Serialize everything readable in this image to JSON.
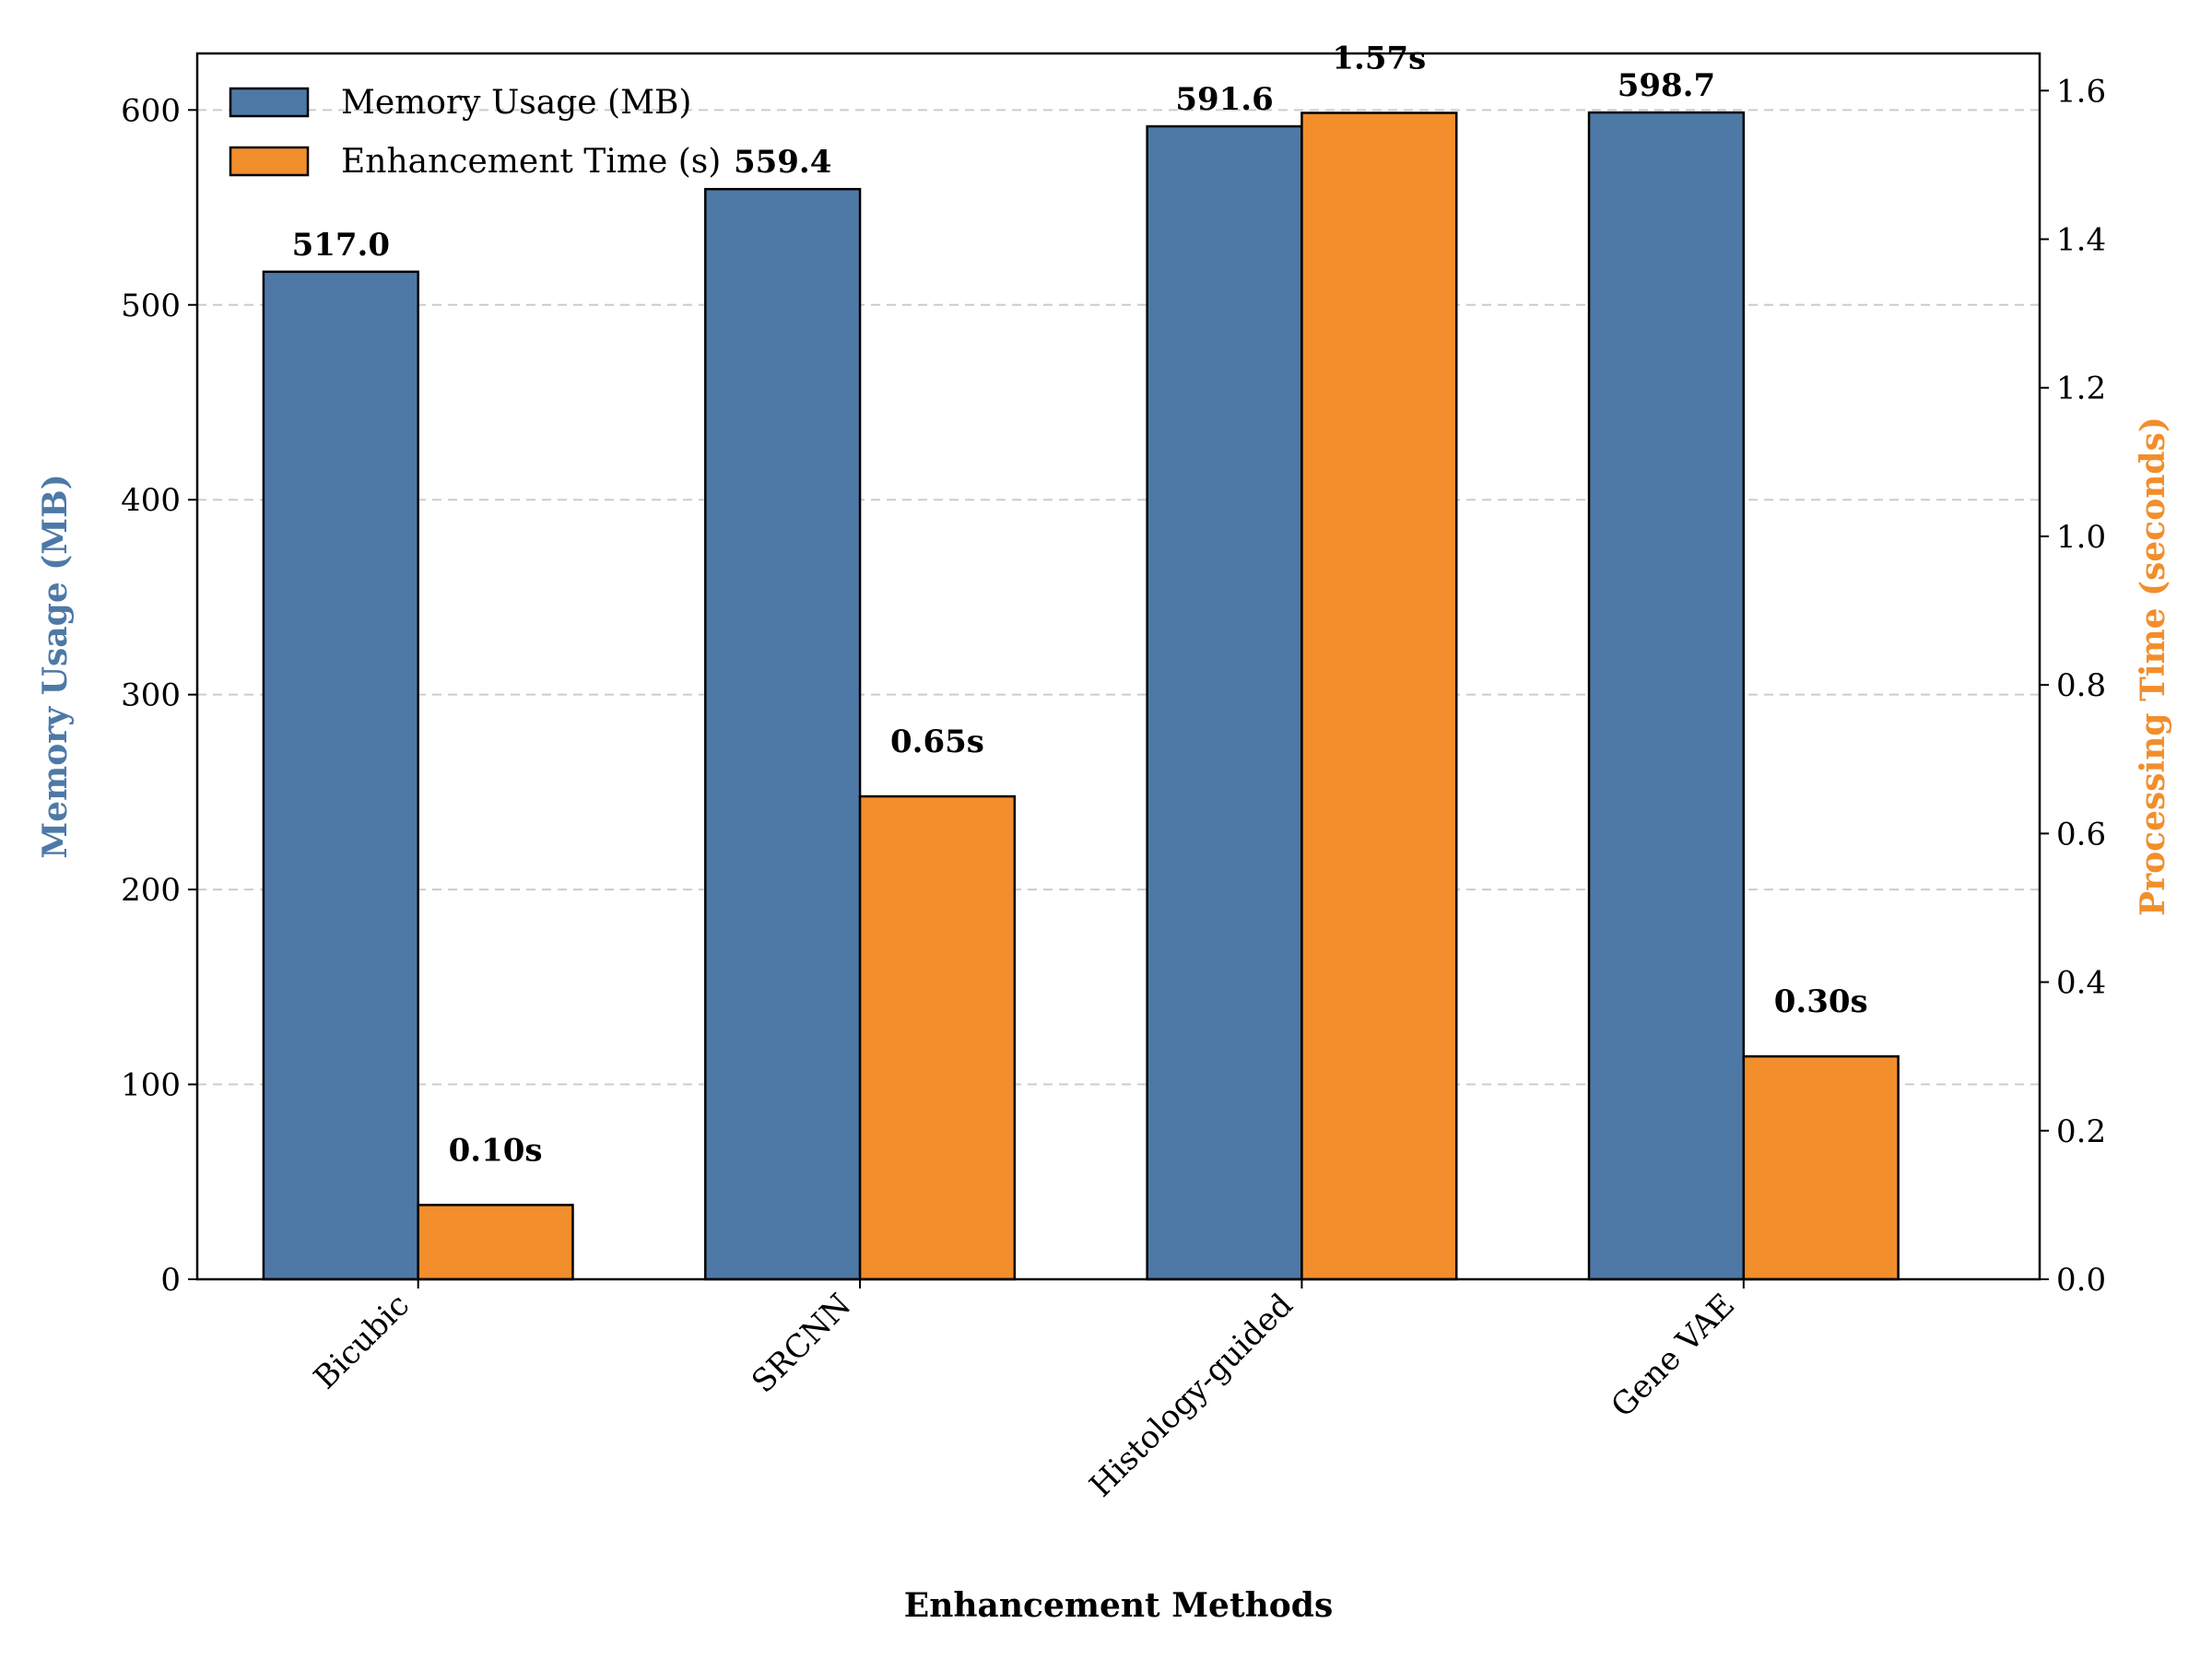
{
  "chart_data": {
    "type": "bar",
    "categories": [
      "Bicubic",
      "SRCNN",
      "Histology-guided",
      "Gene VAE"
    ],
    "series": [
      {
        "name": "Memory Usage (MB)",
        "axis": "left",
        "color": "#4e79a7",
        "values": [
          517.0,
          559.4,
          591.6,
          598.7
        ],
        "value_labels": [
          "517.0",
          "559.4",
          "591.6",
          "598.7"
        ]
      },
      {
        "name": "Enhancement Time (s)",
        "axis": "right",
        "color": "#f28e2b",
        "values": [
          0.1,
          0.65,
          1.57,
          0.3
        ],
        "value_labels": [
          "0.10s",
          "0.65s",
          "1.57s",
          "0.30s"
        ]
      }
    ],
    "xlabel": "Enhancement Methods",
    "ylabel": "Memory Usage (MB)",
    "ylabel_color": "#4e79a7",
    "y2label": "Processing Time (seconds)",
    "y2label_color": "#f28e2b",
    "ylim": [
      0,
      629
    ],
    "y2lim": [
      0,
      1.65
    ],
    "yticks": [
      0,
      100,
      200,
      300,
      400,
      500,
      600
    ],
    "y2ticks": [
      0.0,
      0.2,
      0.4,
      0.6,
      0.8,
      1.0,
      1.2,
      1.4,
      1.6
    ],
    "grid": "horizontal dashed",
    "legend_position": "top-left"
  }
}
